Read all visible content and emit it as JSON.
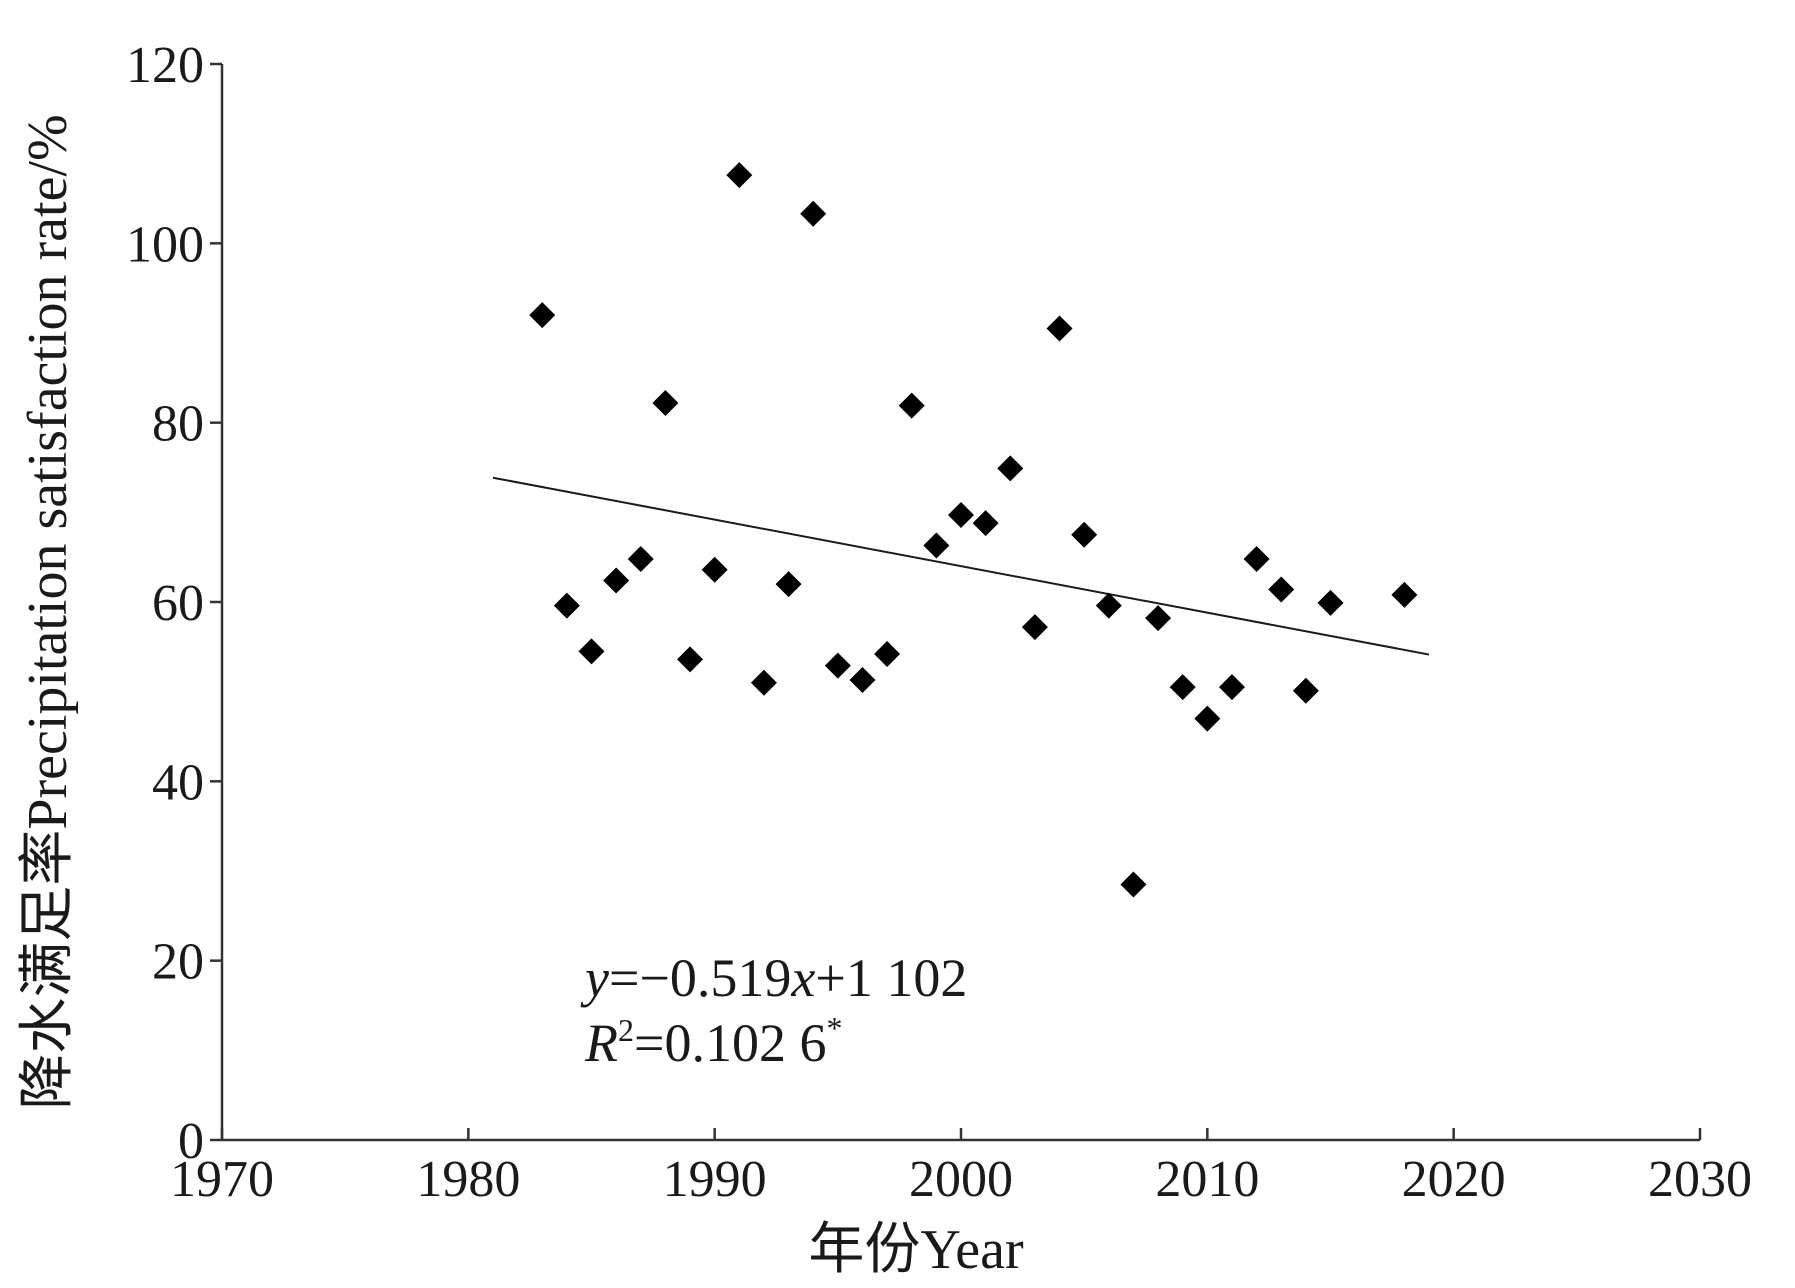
{
  "chart_data": {
    "type": "scatter",
    "xlabel": "年份Year",
    "ylabel": "降水满足率Precipitation satisfaction rate/%",
    "xlim": [
      1970,
      2030
    ],
    "ylim": [
      0,
      120
    ],
    "x_ticks": [
      "1970",
      "1980",
      "1990",
      "2000",
      "2010",
      "2020",
      "2030"
    ],
    "y_ticks": [
      "0",
      "20",
      "40",
      "60",
      "80",
      "100",
      "120"
    ],
    "marker": "diamond",
    "marker_color": "#000000",
    "series": [
      {
        "points": [
          {
            "x": 1983,
            "y": 92.0
          },
          {
            "x": 1984,
            "y": 59.6
          },
          {
            "x": 1985,
            "y": 54.5
          },
          {
            "x": 1986,
            "y": 62.4
          },
          {
            "x": 1987,
            "y": 64.8
          },
          {
            "x": 1988,
            "y": 82.2
          },
          {
            "x": 1989,
            "y": 53.6
          },
          {
            "x": 1990,
            "y": 63.6
          },
          {
            "x": 1991,
            "y": 107.6
          },
          {
            "x": 1992,
            "y": 51.0
          },
          {
            "x": 1993,
            "y": 62.0
          },
          {
            "x": 1994,
            "y": 103.3
          },
          {
            "x": 1995,
            "y": 52.9
          },
          {
            "x": 1996,
            "y": 51.3
          },
          {
            "x": 1997,
            "y": 54.2
          },
          {
            "x": 1998,
            "y": 81.9
          },
          {
            "x": 1999,
            "y": 66.3
          },
          {
            "x": 2000,
            "y": 69.7
          },
          {
            "x": 2001,
            "y": 68.8
          },
          {
            "x": 2002,
            "y": 74.9
          },
          {
            "x": 2003,
            "y": 57.2
          },
          {
            "x": 2004,
            "y": 90.5
          },
          {
            "x": 2005,
            "y": 67.5
          },
          {
            "x": 2006,
            "y": 59.6
          },
          {
            "x": 2007,
            "y": 28.5
          },
          {
            "x": 2008,
            "y": 58.2
          },
          {
            "x": 2009,
            "y": 50.5
          },
          {
            "x": 2010,
            "y": 47.0
          },
          {
            "x": 2011,
            "y": 50.5
          },
          {
            "x": 2012,
            "y": 64.8
          },
          {
            "x": 2013,
            "y": 61.4
          },
          {
            "x": 2014,
            "y": 50.1
          },
          {
            "x": 2015,
            "y": 59.9
          },
          {
            "x": 2018,
            "y": 60.8
          }
        ]
      }
    ],
    "trendline": {
      "slope": -0.519,
      "intercept": 1102,
      "x_range": [
        1981,
        2019
      ],
      "color": "#1a1a1a"
    },
    "annotation": {
      "equation": {
        "y_var": "y",
        "eq_part1": "=−0.519",
        "x_var": "x",
        "eq_part2": "+1 102"
      },
      "r_squared": {
        "r_var": "R",
        "sup": "2",
        "value": "=0.102 6",
        "star": "*"
      }
    }
  }
}
